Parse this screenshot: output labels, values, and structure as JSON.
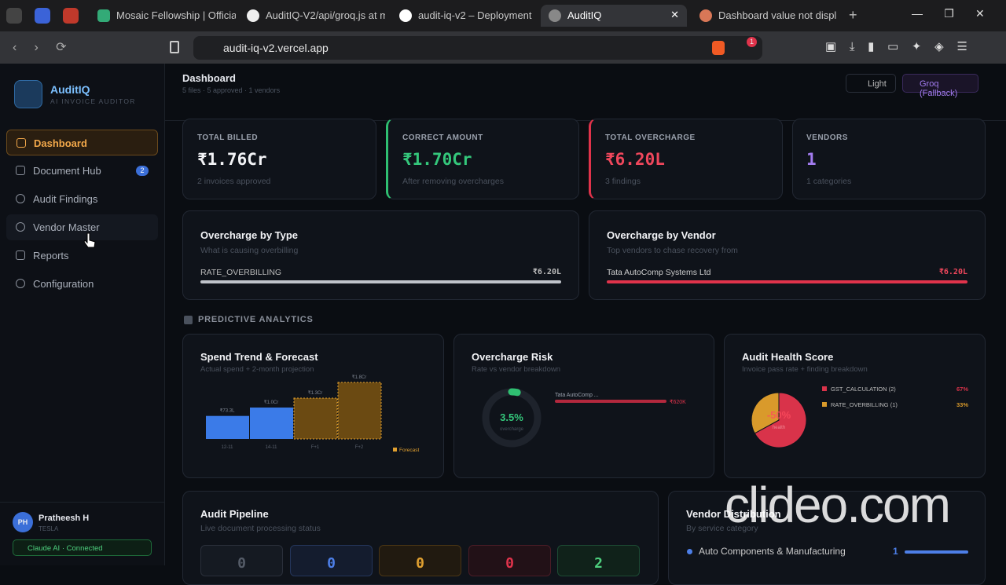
{
  "browser": {
    "tabs": [
      "Mosaic Fellowship | Official",
      "AuditIQ-V2/api/groq.js at m",
      "audit-iq-v2 – Deployment",
      "AuditIQ",
      "Dashboard value not displ"
    ],
    "url": "audit-iq-v2.vercel.app",
    "alert_badge": 1
  },
  "sidebar": {
    "app_name": "AuditIQ",
    "tagline": "AI INVOICE AUDITOR",
    "nav": [
      {
        "label": "Dashboard"
      },
      {
        "label": "Document Hub",
        "badge": 2
      },
      {
        "label": "Audit Findings"
      },
      {
        "label": "Vendor Master"
      },
      {
        "label": "Reports"
      },
      {
        "label": "Configuration"
      }
    ],
    "user": {
      "initials": "PH",
      "name": "Pratheesh H",
      "org": "TESLA"
    },
    "status": "Claude AI · Connected"
  },
  "header": {
    "title": "Dashboard",
    "subtitle": "5 files · 5 approved · 1 vendors",
    "theme": "Light",
    "model": "Groq (Fallback)"
  },
  "stats": [
    {
      "label": "TOTAL BILLED",
      "value": "₹1.76Cr",
      "note": "2 invoices approved"
    },
    {
      "label": "CORRECT AMOUNT",
      "value": "₹1.70Cr",
      "note": "After removing overcharges"
    },
    {
      "label": "TOTAL OVERCHARGE",
      "value": "₹6.20L",
      "note": "3 findings"
    },
    {
      "label": "VENDORS",
      "value": "1",
      "note": "1 categories"
    }
  ],
  "overcharge_type": {
    "title": "Overcharge by Type",
    "subtitle": "What is causing overbilling",
    "items": [
      {
        "name": "RATE_OVERBILLING",
        "amount": "₹6.20L"
      }
    ]
  },
  "overcharge_vendor": {
    "title": "Overcharge by Vendor",
    "subtitle": "Top vendors to chase recovery from",
    "items": [
      {
        "name": "Tata AutoComp Systems Ltd",
        "amount": "₹6.20L"
      }
    ]
  },
  "section": "PREDICTIVE ANALYTICS",
  "spend_trend": {
    "title": "Spend Trend & Forecast",
    "subtitle": "Actual spend + 2-month projection",
    "categories": [
      "12-11",
      "14-11",
      "F+1",
      "F+2"
    ],
    "values": [
      73.3,
      100,
      130,
      180
    ],
    "value_labels": [
      "₹73.3L",
      "₹1.0Cr",
      "₹1.3Cr",
      "₹1.8Cr"
    ],
    "legend": "Forecast"
  },
  "risk": {
    "title": "Overcharge Risk",
    "subtitle": "Rate vs vendor breakdown",
    "value": 3.5,
    "value_label": "3.5%",
    "caption": "overcharge",
    "vendor": "Tata AutoComp ...",
    "vendor_amount": "₹620K"
  },
  "health": {
    "title": "Audit Health Score",
    "subtitle": "Invoice pass rate + finding breakdown",
    "center": "-50%",
    "caption": "health",
    "slices": [
      {
        "name": "GST_CALCULATION (2)",
        "value": 67,
        "value_label": "67%",
        "color": "#d9334a"
      },
      {
        "name": "RATE_OVERBILLING (1)",
        "value": 33,
        "value_label": "33%",
        "color": "#d99a2b"
      }
    ]
  },
  "pipeline": {
    "title": "Audit Pipeline",
    "subtitle": "Live document processing status",
    "counts": [
      0,
      0,
      0,
      0,
      2
    ]
  },
  "vendor_dist": {
    "title": "Vendor Distribution",
    "subtitle": "By service category",
    "items": [
      {
        "name": "Auto Components & Manufacturing",
        "count": 1
      }
    ]
  },
  "watermark": "clideo.com"
}
